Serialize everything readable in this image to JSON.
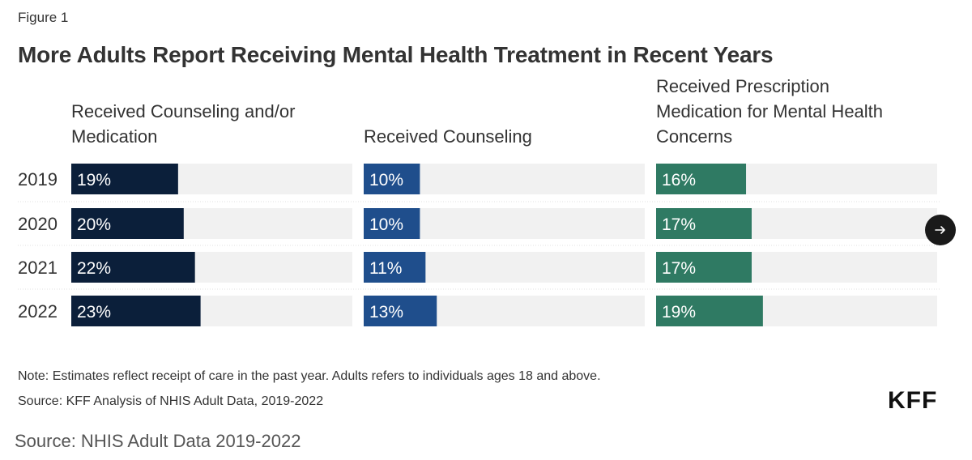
{
  "figure_label": "Figure 1",
  "note": "Note: Estimates reflect receipt of care in the past year. Adults refers to individuals ages 18 and above.",
  "source": "Source: KFF Analysis of NHIS Adult Data, 2019-2022",
  "logo": "KFF",
  "external_source": "Source: NHIS Adult Data 2019-2022",
  "next_icon": "arrow-right-icon",
  "chart_data": {
    "type": "bar",
    "title": "More Adults Report Receiving Mental Health Treatment in Recent Years",
    "categories": [
      "2019",
      "2020",
      "2021",
      "2022"
    ],
    "xlim": [
      0,
      50
    ],
    "series": [
      {
        "name": "Received Counseling and/or Medication",
        "name_lines": [
          "Received Counseling and/or",
          "Medication"
        ],
        "values": [
          19,
          20,
          22,
          23
        ],
        "labels": [
          "19%",
          "20%",
          "22%",
          "23%"
        ],
        "color": "#0b1f3a"
      },
      {
        "name": "Received Counseling",
        "name_lines": [
          "Received Counseling"
        ],
        "values": [
          10,
          10,
          11,
          13
        ],
        "labels": [
          "10%",
          "10%",
          "11%",
          "13%"
        ],
        "color": "#1f4e8c"
      },
      {
        "name": "Received Prescription Medication for Mental Health Concerns",
        "name_lines": [
          "Received Prescription",
          "Medication for Mental Health",
          "Concerns"
        ],
        "values": [
          16,
          17,
          17,
          19
        ],
        "labels": [
          "16%",
          "17%",
          "17%",
          "19%"
        ],
        "color": "#2f7a63"
      }
    ],
    "track_color": "#f1f1f1",
    "label_color": "#ffffff"
  }
}
